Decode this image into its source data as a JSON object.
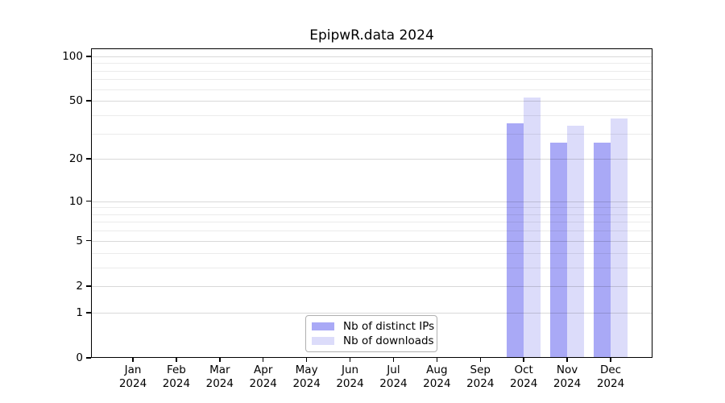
{
  "figure": {
    "background": "#ffffff"
  },
  "chart_data": {
    "type": "bar",
    "title": "EpipwR.data 2024",
    "xlabel": "",
    "ylabel": "",
    "categories": [
      "Jan 2024",
      "Feb 2024",
      "Mar 2024",
      "Apr 2024",
      "May 2024",
      "Jun 2024",
      "Jul 2024",
      "Aug 2024",
      "Sep 2024",
      "Oct 2024",
      "Nov 2024",
      "Dec 2024"
    ],
    "series": [
      {
        "name": "Nb of distinct IPs",
        "color": "#a9a9f6",
        "values": [
          0,
          0,
          0,
          0,
          0,
          0,
          0,
          0,
          0,
          35,
          26,
          26
        ]
      },
      {
        "name": "Nb of downloads",
        "color": "#dcdcfa",
        "values": [
          0,
          0,
          0,
          0,
          0,
          0,
          0,
          0,
          0,
          53,
          34,
          38
        ]
      }
    ],
    "yscale": "log1p",
    "ylim": [
      0,
      113
    ],
    "yticks": [
      0,
      1,
      2,
      5,
      10,
      20,
      50,
      100
    ],
    "yticks_minor": [
      3,
      4,
      6,
      7,
      8,
      9,
      30,
      40,
      60,
      70,
      80,
      90
    ],
    "grid": "horizontal",
    "legend": {
      "location": "lower center"
    }
  }
}
